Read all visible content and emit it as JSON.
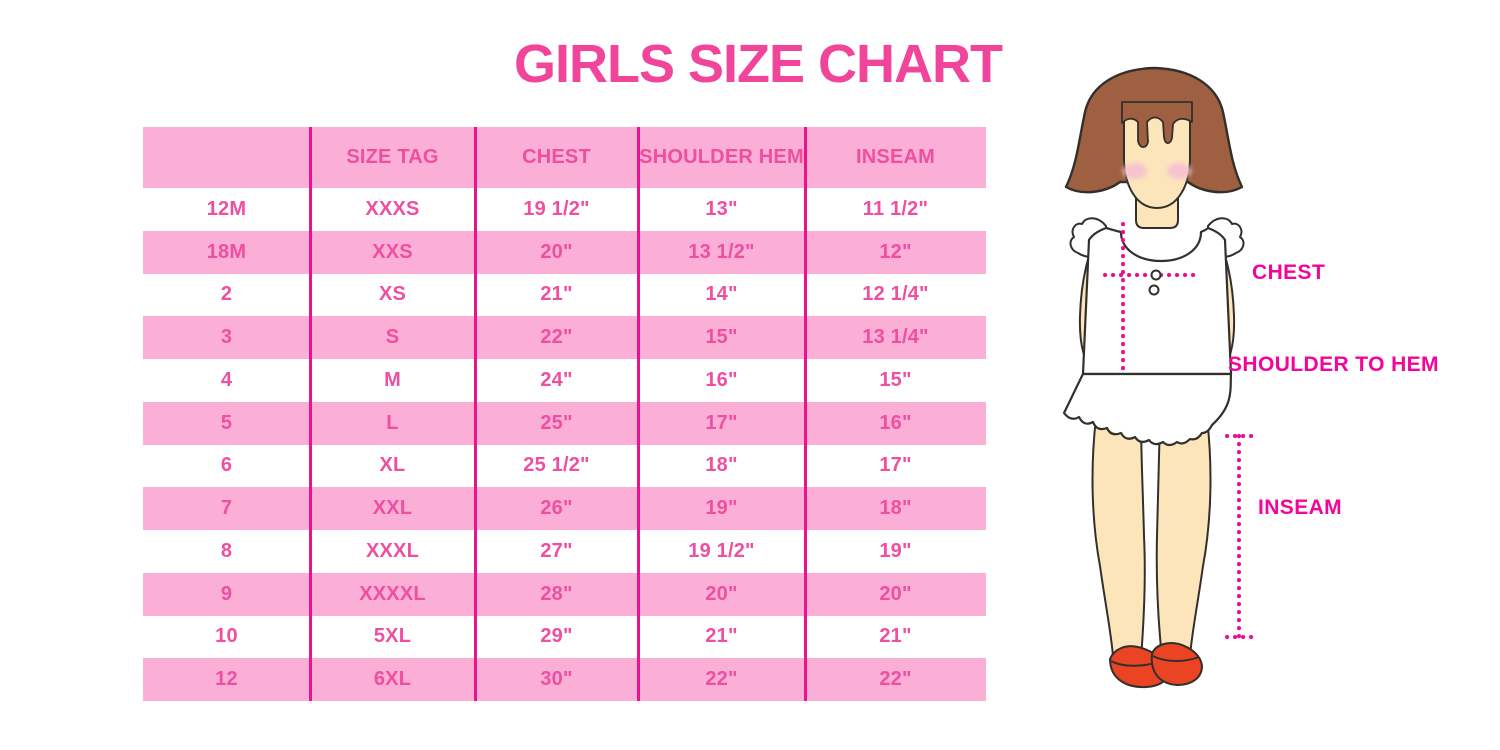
{
  "title": "GIRLS SIZE CHART",
  "colors": {
    "title_pink": "#F0459B",
    "row_pink": "#FBAED6",
    "cell_text_pink": "#EE4FA1",
    "separator_magenta": "#E9138D",
    "measure_magenta": "#ED0E90",
    "label_magenta": "#F3049B",
    "hair_brown": "#9E6040",
    "skin": "#FCE5BB",
    "blush": "#F6C3CF",
    "shoe_red": "#EA4425",
    "outline": "#33302C"
  },
  "chart_data": {
    "type": "table",
    "title": "GIRLS SIZE CHART",
    "columns": [
      "",
      "SIZE TAG",
      "CHEST",
      "SHOULDER HEM",
      "INSEAM"
    ],
    "rows": [
      [
        "12M",
        "XXXS",
        "19 1/2\"",
        "13\"",
        "11 1/2\""
      ],
      [
        "18M",
        "XXS",
        "20\"",
        "13 1/2\"",
        "12\""
      ],
      [
        "2",
        "XS",
        "21\"",
        "14\"",
        "12 1/4\""
      ],
      [
        "3",
        "S",
        "22\"",
        "15\"",
        "13 1/4\""
      ],
      [
        "4",
        "M",
        "24\"",
        "16\"",
        "15\""
      ],
      [
        "5",
        "L",
        "25\"",
        "17\"",
        "16\""
      ],
      [
        "6",
        "XL",
        "25 1/2\"",
        "18\"",
        "17\""
      ],
      [
        "7",
        "XXL",
        "26\"",
        "19\"",
        "18\""
      ],
      [
        "8",
        "XXXL",
        "27\"",
        "19 1/2\"",
        "19\""
      ],
      [
        "9",
        "XXXXL",
        "28\"",
        "20\"",
        "20\""
      ],
      [
        "10",
        "5XL",
        "29\"",
        "21\"",
        "21\""
      ],
      [
        "12",
        "6XL",
        "30\"",
        "22\"",
        "22\""
      ]
    ],
    "layout": {
      "header_background": "pink",
      "row_striping": [
        "white",
        "pink"
      ],
      "grid": "vertical column separators only"
    }
  },
  "illustration": {
    "labels": {
      "chest": "CHEST",
      "shoulder_to_hem": "SHOULDER TO HEM",
      "inseam": "INSEAM"
    }
  }
}
